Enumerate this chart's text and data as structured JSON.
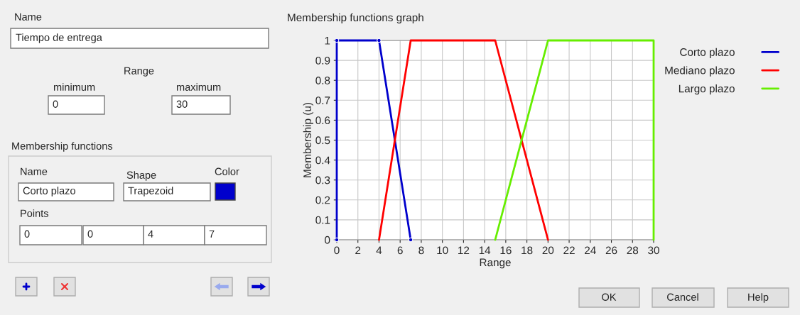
{
  "chart_data": [
    {
      "type": "line",
      "title": "Membership functions graph",
      "xlabel": "Range",
      "ylabel": "Membership (u)",
      "xlim": [
        0,
        30
      ],
      "xticks": [
        0,
        2,
        4,
        6,
        8,
        10,
        12,
        14,
        16,
        18,
        20,
        22,
        24,
        26,
        28,
        30
      ],
      "ylim": [
        0,
        1
      ],
      "yticks": [
        0,
        0.1,
        0.2,
        0.3,
        0.4,
        0.5,
        0.6,
        0.7,
        0.8,
        0.9,
        1
      ],
      "grid": true,
      "legend": "right",
      "series": [
        {
          "name": "Corto plazo",
          "color": "#0000cc",
          "x": [
            0,
            0,
            4,
            7
          ],
          "values": [
            0,
            1,
            1,
            0
          ],
          "marker": "circle"
        },
        {
          "name": "Mediano plazo",
          "color": "#ff0000",
          "x": [
            4,
            7,
            15,
            20
          ],
          "values": [
            0,
            1,
            1,
            0
          ]
        },
        {
          "name": "Largo plazo",
          "color": "#66ee00",
          "x": [
            15,
            20,
            30,
            30
          ],
          "values": [
            0,
            1,
            1,
            0
          ]
        }
      ]
    },
    {
      "type": "other",
      "annotations": [
        "Name",
        "Tiempo de entrega",
        "Range",
        "minimum",
        "0",
        "maximum",
        "30",
        "Membership functions",
        "Name",
        "Shape",
        "Color",
        "Corto plazo",
        "Trapezoid",
        "Points",
        "0",
        "0",
        "4",
        "7",
        "OK",
        "Cancel",
        "Help"
      ]
    }
  ]
}
